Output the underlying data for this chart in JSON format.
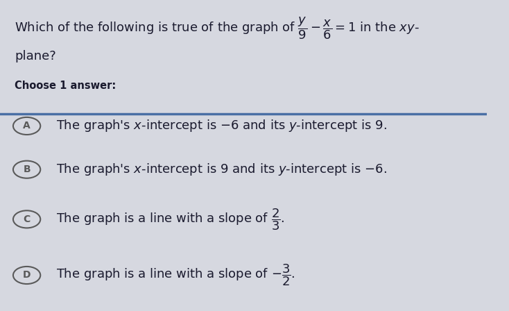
{
  "bg_color": "#d6d8e0",
  "title_line1": "Which of the following is true of the graph of",
  "title_equation": "$\\frac{y}{9} - \\frac{x}{6} = 1$",
  "title_line1_suffix": " in the $xy$-",
  "title_line2": "plane?",
  "choose_text": "Choose 1 answer:",
  "divider_color": "#4a6fa5",
  "circle_color": "#5a5a5a",
  "options": [
    {
      "label": "A",
      "text_parts": [
        "The graph’s $x$-intercept is $-6$ and its $y$-intercept is $9$."
      ]
    },
    {
      "label": "B",
      "text_parts": [
        "The graph’s $x$-intercept is $9$ and its $y$-intercept is $-6$."
      ]
    },
    {
      "label": "C",
      "text_parts": [
        "The graph is a line with a slope of $\\frac{2}{3}$."
      ]
    },
    {
      "label": "D",
      "text_parts": [
        "The graph is a line with a slope of $-\\frac{3}{2}$."
      ]
    }
  ],
  "text_color": "#1a1a2e",
  "font_size_title": 13,
  "font_size_choose": 10.5,
  "font_size_options": 13
}
